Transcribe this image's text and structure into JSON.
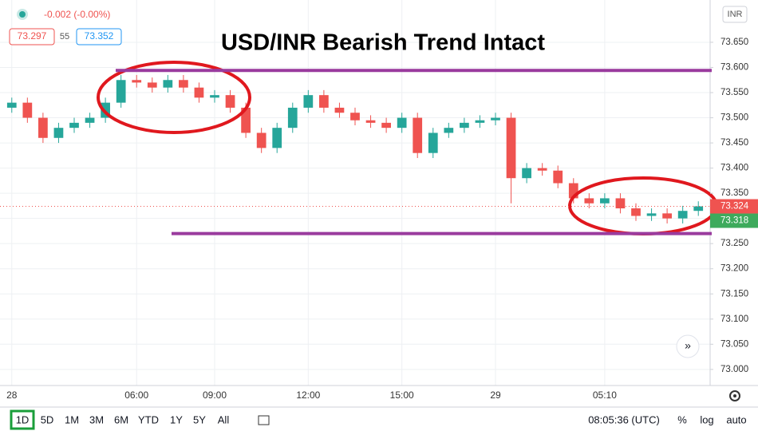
{
  "header": {
    "change": "-0.002 (-0.00%)",
    "bid": 73.297,
    "spread": 55,
    "ask": 73.352,
    "currency": "INR"
  },
  "chart_data": {
    "type": "candlestick",
    "title": "USD/INR Bearish Trend Intact",
    "categories": [
      "28",
      null,
      null,
      null,
      null,
      null,
      null,
      null,
      "06:00",
      null,
      null,
      null,
      null,
      "09:00",
      null,
      null,
      null,
      null,
      null,
      "12:00",
      null,
      null,
      null,
      null,
      null,
      "15:00",
      null,
      null,
      null,
      null,
      null,
      "29",
      null,
      null,
      null,
      null,
      null,
      null,
      "05:10",
      null,
      null,
      null,
      null,
      null,
      null
    ],
    "open": [
      73.52,
      73.53,
      73.5,
      73.46,
      73.48,
      73.49,
      73.5,
      73.53,
      73.575,
      73.57,
      73.56,
      73.575,
      73.56,
      73.54,
      73.545,
      73.52,
      73.47,
      73.44,
      73.48,
      73.52,
      73.545,
      73.52,
      73.51,
      73.495,
      73.49,
      73.48,
      73.5,
      73.43,
      73.47,
      73.48,
      73.49,
      73.495,
      73.5,
      73.38,
      73.4,
      73.395,
      73.37,
      73.34,
      73.33,
      73.34,
      73.32,
      73.305,
      73.31,
      73.3,
      73.315
    ],
    "high": [
      73.54,
      73.54,
      73.51,
      73.49,
      73.5,
      73.51,
      73.54,
      73.585,
      73.585,
      73.58,
      73.585,
      73.585,
      73.57,
      73.555,
      73.555,
      73.53,
      73.48,
      73.49,
      73.53,
      73.555,
      73.555,
      73.53,
      73.52,
      73.505,
      73.5,
      73.51,
      73.51,
      73.48,
      73.49,
      73.5,
      73.505,
      73.51,
      73.51,
      73.41,
      73.41,
      73.405,
      73.38,
      73.35,
      73.35,
      73.35,
      73.33,
      73.32,
      73.32,
      73.325,
      73.334
    ],
    "low": [
      73.51,
      73.49,
      73.45,
      73.45,
      73.47,
      73.48,
      73.49,
      73.52,
      73.56,
      73.55,
      73.55,
      73.55,
      73.53,
      73.53,
      73.51,
      73.46,
      73.43,
      73.43,
      73.47,
      73.51,
      73.51,
      73.5,
      73.485,
      73.48,
      73.47,
      73.47,
      73.42,
      73.42,
      73.46,
      73.47,
      73.48,
      73.485,
      73.33,
      73.37,
      73.385,
      73.36,
      73.33,
      73.32,
      73.32,
      73.31,
      73.295,
      73.295,
      73.29,
      73.29,
      73.305
    ],
    "close": [
      73.53,
      73.5,
      73.46,
      73.48,
      73.49,
      73.5,
      73.53,
      73.575,
      73.57,
      73.56,
      73.575,
      73.56,
      73.54,
      73.545,
      73.52,
      73.47,
      73.44,
      73.48,
      73.52,
      73.545,
      73.52,
      73.51,
      73.495,
      73.49,
      73.48,
      73.5,
      73.43,
      73.47,
      73.48,
      73.49,
      73.495,
      73.5,
      73.38,
      73.4,
      73.395,
      73.37,
      73.34,
      73.33,
      73.34,
      73.32,
      73.305,
      73.31,
      73.3,
      73.315,
      73.324
    ],
    "up_color": "#26a69a",
    "down_color": "#ef5350",
    "ylim": [
      72.968,
      73.734
    ],
    "yticks": [
      {
        "value": 73.0,
        "label": "73.000"
      },
      {
        "value": 73.05,
        "label": "73.050"
      },
      {
        "value": 73.1,
        "label": "73.100"
      },
      {
        "value": 73.15,
        "label": "73.150"
      },
      {
        "value": 73.2,
        "label": "73.200"
      },
      {
        "value": 73.25,
        "label": "73.250"
      },
      {
        "value": 73.3,
        "label": "73.300"
      },
      {
        "value": 73.35,
        "label": "73.350"
      },
      {
        "value": 73.4,
        "label": "73.400"
      },
      {
        "value": 73.45,
        "label": "73.450"
      },
      {
        "value": 73.5,
        "label": "73.500"
      },
      {
        "value": 73.55,
        "label": "73.550"
      },
      {
        "value": 73.6,
        "label": "73.600"
      },
      {
        "value": 73.65,
        "label": "73.650"
      }
    ],
    "grid": true,
    "last_price": 73.324,
    "last_price_color": "#ef5350",
    "second_price": 73.318,
    "second_price_color": "#3daa5c",
    "lines": [
      {
        "value": 73.594,
        "color": "#9a3b9e"
      },
      {
        "value": 73.27,
        "color": "#9a3b9e"
      }
    ]
  },
  "toolbar": {
    "ranges": [
      "1D",
      "5D",
      "1M",
      "3M",
      "6M",
      "YTD",
      "1Y",
      "5Y",
      "All"
    ],
    "clock": "08:05:36 (UTC)",
    "percent": "%",
    "log": "log",
    "auto": "auto"
  }
}
